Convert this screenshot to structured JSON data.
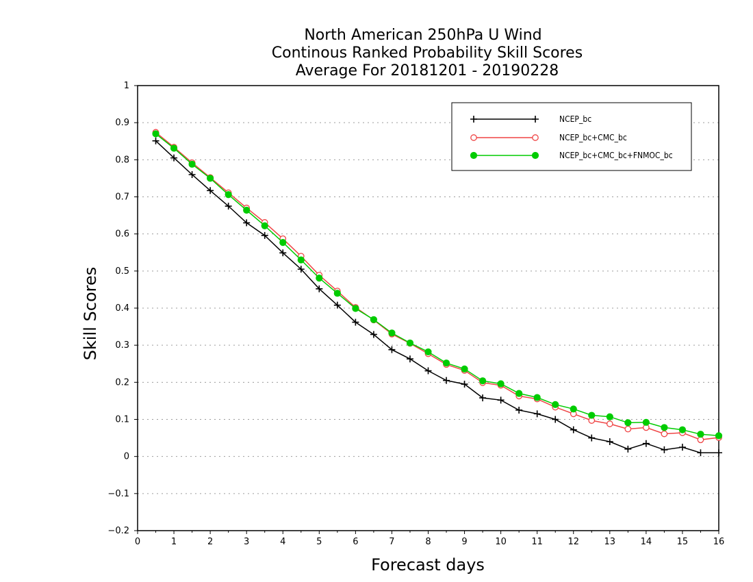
{
  "chart_data": {
    "type": "line",
    "title": [
      "North American 250hPa U Wind",
      "Continous Ranked Probability Skill Scores",
      "Average For 20181201 - 20190228"
    ],
    "xlabel": "Forecast days",
    "ylabel": "Skill Scores",
    "xlim": [
      0,
      16
    ],
    "ylim": [
      -0.2,
      1
    ],
    "xticks": [
      "0",
      "1",
      "2",
      "3",
      "4",
      "5",
      "6",
      "7",
      "8",
      "9",
      "10",
      "11",
      "12",
      "13",
      "14",
      "15",
      "16"
    ],
    "yticks": [
      "-0.2",
      "-0.1",
      "0",
      "0.1",
      "0.2",
      "0.3",
      "0.4",
      "0.5",
      "0.6",
      "0.7",
      "0.8",
      "0.9",
      "1"
    ],
    "grid": true,
    "legend_position": "top-right",
    "x": [
      0.5,
      1,
      1.5,
      2,
      2.5,
      3,
      3.5,
      4,
      4.5,
      5,
      5.5,
      6,
      6.5,
      7,
      7.5,
      8,
      8.5,
      9,
      9.5,
      10,
      10.5,
      11,
      11.5,
      12,
      12.5,
      13,
      13.5,
      14,
      14.5,
      15,
      15.5,
      16
    ],
    "series": [
      {
        "name": "NCEP_bc",
        "color": "#000000",
        "marker": "plus",
        "values": [
          0.851,
          0.805,
          0.76,
          0.717,
          0.675,
          0.63,
          0.596,
          0.549,
          0.505,
          0.452,
          0.408,
          0.362,
          0.329,
          0.288,
          0.263,
          0.231,
          0.205,
          0.195,
          0.158,
          0.152,
          0.125,
          0.115,
          0.1,
          0.072,
          0.05,
          0.04,
          0.02,
          0.035,
          0.018,
          0.025,
          0.01,
          0.01
        ]
      },
      {
        "name": "NCEP_bc+CMC_bc",
        "color": "#ef4444",
        "marker": "open-circle",
        "values": [
          0.874,
          0.834,
          0.792,
          0.752,
          0.711,
          0.67,
          0.631,
          0.587,
          0.54,
          0.489,
          0.446,
          0.402,
          0.368,
          0.33,
          0.305,
          0.277,
          0.248,
          0.232,
          0.199,
          0.192,
          0.163,
          0.155,
          0.133,
          0.115,
          0.097,
          0.088,
          0.074,
          0.078,
          0.061,
          0.064,
          0.045,
          0.051
        ]
      },
      {
        "name": "NCEP_bc+CMC_bc+FNMOC_bc",
        "color": "#00cc00",
        "marker": "filled-circle",
        "values": [
          0.87,
          0.831,
          0.788,
          0.75,
          0.706,
          0.664,
          0.622,
          0.577,
          0.53,
          0.481,
          0.44,
          0.399,
          0.369,
          0.333,
          0.306,
          0.282,
          0.252,
          0.236,
          0.204,
          0.196,
          0.17,
          0.159,
          0.14,
          0.128,
          0.111,
          0.107,
          0.091,
          0.092,
          0.078,
          0.072,
          0.06,
          0.056
        ]
      }
    ]
  }
}
